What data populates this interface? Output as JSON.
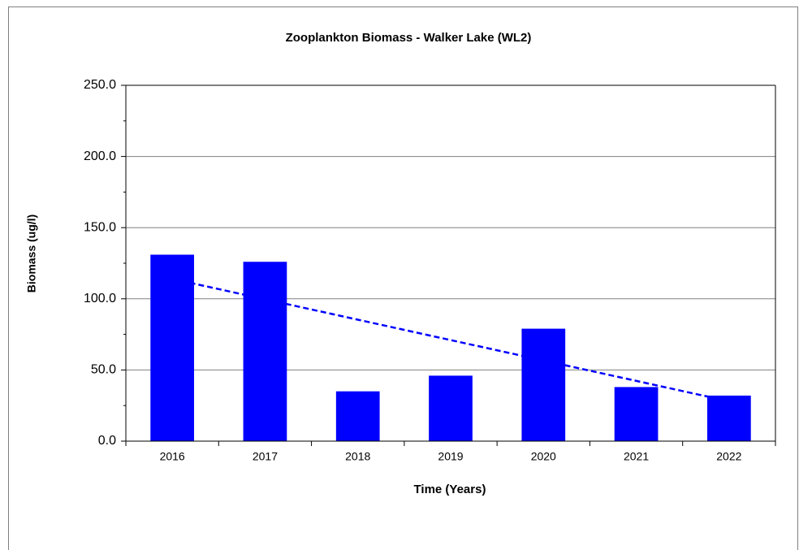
{
  "chart_data": {
    "type": "bar",
    "title": "Zooplankton Biomass - Walker Lake (WL2)",
    "x_label": "Time (Years)",
    "y_label": "Biomass (ug/l)",
    "categories": [
      "2016",
      "2017",
      "2018",
      "2019",
      "2020",
      "2021",
      "2022"
    ],
    "values": [
      131,
      126,
      35,
      46,
      79,
      38,
      32
    ],
    "color": "#0000ff",
    "ylim": [
      0,
      250
    ],
    "yticks": [
      {
        "value": 0,
        "label": "0.0"
      },
      {
        "value": 50,
        "label": "50.0"
      },
      {
        "value": 100,
        "label": "100.0"
      },
      {
        "value": 150,
        "label": "150.0"
      },
      {
        "value": 200,
        "label": "200.0"
      },
      {
        "value": 250,
        "label": "250.0"
      }
    ],
    "minor_yticks": [
      25,
      75,
      125,
      175,
      225
    ],
    "grid": true,
    "trendline": {
      "start": 114,
      "end": 28,
      "color": "#0000ff",
      "dashed": true
    }
  }
}
